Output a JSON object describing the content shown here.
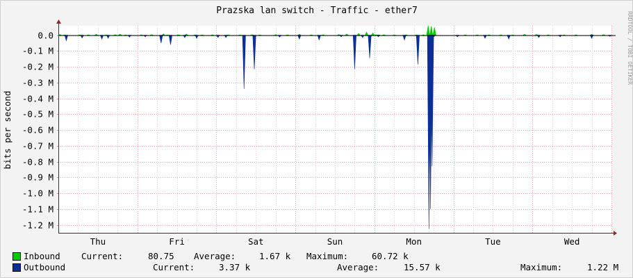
{
  "chart_data": {
    "type": "area",
    "title": "Prazska lan switch - Traffic - ether7",
    "ylabel": "bits per second",
    "watermark": "RRDTOOL / TOBI OETIKER",
    "ylim": [
      -1250000,
      60000
    ],
    "yticks": [
      {
        "value": 0,
        "label": "0.0"
      },
      {
        "value": -100000,
        "label": "-0.1 M"
      },
      {
        "value": -200000,
        "label": "-0.2 M"
      },
      {
        "value": -300000,
        "label": "-0.3 M"
      },
      {
        "value": -400000,
        "label": "-0.4 M"
      },
      {
        "value": -500000,
        "label": "-0.5 M"
      },
      {
        "value": -600000,
        "label": "-0.6 M"
      },
      {
        "value": -700000,
        "label": "-0.7 M"
      },
      {
        "value": -800000,
        "label": "-0.8 M"
      },
      {
        "value": -900000,
        "label": "-0.9 M"
      },
      {
        "value": -1000000,
        "label": "-1.0 M"
      },
      {
        "value": -1100000,
        "label": "-1.1 M"
      },
      {
        "value": -1200000,
        "label": "-1.2 M"
      }
    ],
    "xlim": [
      0,
      7
    ],
    "xticks": [
      {
        "value": 0.5,
        "label": "Thu"
      },
      {
        "value": 1.5,
        "label": "Fri"
      },
      {
        "value": 2.5,
        "label": "Sat"
      },
      {
        "value": 3.5,
        "label": "Sun"
      },
      {
        "value": 4.5,
        "label": "Mon"
      },
      {
        "value": 5.5,
        "label": "Tue"
      },
      {
        "value": 6.5,
        "label": "Wed"
      }
    ],
    "grid": true,
    "legend_position": "bottom",
    "series": [
      {
        "name": "Inbound",
        "color": "#00cc00",
        "x": [
          0.02,
          0.08,
          0.27,
          0.38,
          0.48,
          0.6,
          0.72,
          0.78,
          0.85,
          1.05,
          1.18,
          1.33,
          1.38,
          1.52,
          1.62,
          1.73,
          1.82,
          1.95,
          2.15,
          2.3,
          2.45,
          2.55,
          2.75,
          2.9,
          3.05,
          3.2,
          3.35,
          3.55,
          3.65,
          3.8,
          3.9,
          3.98,
          4.02,
          4.05,
          4.12,
          4.25,
          4.4,
          4.53,
          4.62,
          4.68,
          4.72,
          4.76,
          5.15,
          5.3,
          5.45,
          5.6,
          5.75,
          5.9,
          6.05,
          6.2,
          6.4,
          6.55,
          6.75,
          6.9
        ],
        "y": [
          5000,
          2000,
          3000,
          2500,
          6000,
          1500,
          3500,
          7000,
          2000,
          2500,
          4000,
          9000,
          2000,
          3000,
          8000,
          2000,
          2500,
          3000,
          2500,
          1500,
          3500,
          2000,
          4000,
          2500,
          6000,
          2500,
          3000,
          4500,
          8000,
          12000,
          20000,
          14000,
          3000,
          2500,
          3000,
          2000,
          2500,
          2000,
          3000,
          60720,
          58000,
          50000,
          2000,
          2500,
          3000,
          2500,
          2000,
          6000,
          5000,
          2500,
          2000,
          2500,
          6000,
          4000
        ]
      },
      {
        "name": "Outbound",
        "color": "#0b2f96",
        "x": [
          0.1,
          0.3,
          0.55,
          0.63,
          0.9,
          1.1,
          1.3,
          1.42,
          1.6,
          1.75,
          2.02,
          2.12,
          2.35,
          2.48,
          2.8,
          3.05,
          3.3,
          3.58,
          3.75,
          3.85,
          3.94,
          4.05,
          4.38,
          4.55,
          4.69,
          4.71,
          4.73,
          4.75,
          5.05,
          5.4,
          5.7,
          6.08,
          6.35,
          6.75,
          6.98
        ],
        "y": [
          -35000,
          -18000,
          -25000,
          -20000,
          -12000,
          -10000,
          -50000,
          -60000,
          -15000,
          -20000,
          -15000,
          -15000,
          -340000,
          -215000,
          -12000,
          -25000,
          -30000,
          -10000,
          -215000,
          -15000,
          -145000,
          -10000,
          -30000,
          -185000,
          -1225000,
          -1100000,
          -830000,
          -12000,
          -10000,
          -20000,
          -25000,
          -15000,
          -10000,
          -20000,
          -8000
        ]
      }
    ],
    "legend": {
      "inbound": {
        "name": "Inbound",
        "current_label": "Current:",
        "current": "80.75",
        "average_label": "Average:",
        "average": "1.67 k",
        "maximum_label": "Maximum:",
        "maximum": "60.72 k"
      },
      "outbound": {
        "name": "Outbound",
        "current_label": "Current:",
        "current": "3.37 k",
        "average_label": "Average:",
        "average": "15.57 k",
        "maximum_label": "Maximum:",
        "maximum": "1.22 M"
      }
    }
  }
}
